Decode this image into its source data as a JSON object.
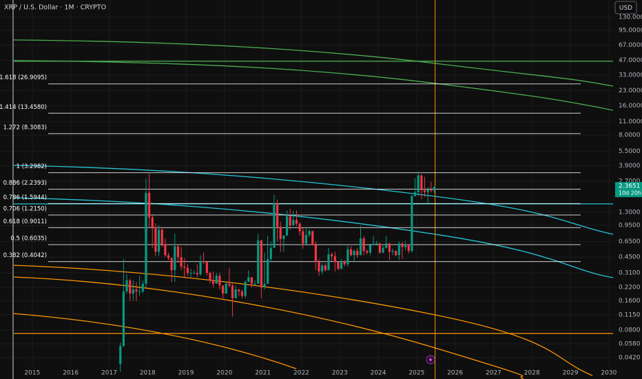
{
  "chart_data": {
    "type": "candlestick",
    "title": "XRP / U.S. Dollar · 1M · CRYPTO",
    "currency": "USD",
    "log_scale": true,
    "grid": true,
    "up_color": "#089981",
    "down_color": "#f23645",
    "xlim": [
      2014.16,
      2030.11
    ],
    "xticks": [
      2015,
      2016,
      2017,
      2018,
      2019,
      2020,
      2021,
      2022,
      2023,
      2024,
      2025,
      2026,
      2027,
      2028,
      2029,
      2030
    ],
    "ylim": [
      0.035,
      195
    ],
    "yticks": [
      {
        "value": 130,
        "label": "130.0000"
      },
      {
        "value": 95,
        "label": "95.0000"
      },
      {
        "value": 67,
        "label": "67.0000"
      },
      {
        "value": 47,
        "label": "47.0000"
      },
      {
        "value": 33,
        "label": "33.0000"
      },
      {
        "value": 23,
        "label": "23.0000"
      },
      {
        "value": 16,
        "label": "16.0000"
      },
      {
        "value": 11,
        "label": "11.0000"
      },
      {
        "value": 8,
        "label": "8.0000"
      },
      {
        "value": 5.5,
        "label": "5.5000"
      },
      {
        "value": 3.9,
        "label": "3.9000"
      },
      {
        "value": 2.7,
        "label": "2.7000"
      },
      {
        "value": 1.3,
        "label": "1.3000"
      },
      {
        "value": 0.95,
        "label": "0.9500"
      },
      {
        "value": 0.65,
        "label": "0.6500"
      },
      {
        "value": 0.45,
        "label": "0.4500"
      },
      {
        "value": 0.31,
        "label": "0.3100"
      },
      {
        "value": 0.22,
        "label": "0.2200"
      },
      {
        "value": 0.16,
        "label": "0.1600"
      },
      {
        "value": 0.115,
        "label": "0.1150"
      },
      {
        "value": 0.08,
        "label": "0.0800"
      },
      {
        "value": 0.058,
        "label": "0.0580"
      },
      {
        "value": 0.042,
        "label": "0.0420"
      }
    ],
    "fib_levels": [
      {
        "value": 26.9095,
        "label": "1.618 (26.9095)"
      },
      {
        "value": 13.458,
        "label": "1.414 (13.4580)"
      },
      {
        "value": 8.3083,
        "label": "1.272 (8.3083)"
      },
      {
        "value": 3.2982,
        "label": "1 (3.2982)"
      },
      {
        "value": 2.2393,
        "label": "0.886 (2.2393)"
      },
      {
        "value": 1.5944,
        "label": "0.786 (1.5944)"
      },
      {
        "value": 1.215,
        "label": "0.706 (1.2150)"
      },
      {
        "value": 0.9011,
        "label": "0.618 (0.9011)"
      },
      {
        "value": 0.6035,
        "label": "0.5 (0.6035)"
      },
      {
        "value": 0.4042,
        "label": "0.382 (0.4042)"
      }
    ],
    "hlines": [
      {
        "value": 45.9,
        "color": "#4caf50"
      },
      {
        "value": 1.58,
        "color": "#26c6da"
      },
      {
        "value": 0.0741,
        "color": "#ff9800"
      }
    ],
    "vlines": [
      {
        "value": 2025.48,
        "color": "#ff9800"
      },
      {
        "value": 2014.5,
        "color": "#d1d4dc"
      }
    ],
    "last_price": 2.3651,
    "countdown": "10d 20h",
    "x": [
      2017.292,
      2017.375,
      2017.458,
      2017.542,
      2017.625,
      2017.708,
      2017.792,
      2017.875,
      2017.958,
      2018.042,
      2018.125,
      2018.208,
      2018.292,
      2018.375,
      2018.458,
      2018.542,
      2018.625,
      2018.708,
      2018.792,
      2018.875,
      2018.958,
      2019.042,
      2019.125,
      2019.208,
      2019.292,
      2019.375,
      2019.458,
      2019.542,
      2019.625,
      2019.708,
      2019.792,
      2019.875,
      2019.958,
      2020.042,
      2020.125,
      2020.208,
      2020.292,
      2020.375,
      2020.458,
      2020.542,
      2020.625,
      2020.708,
      2020.792,
      2020.875,
      2020.958,
      2021.042,
      2021.125,
      2021.208,
      2021.292,
      2021.375,
      2021.458,
      2021.542,
      2021.625,
      2021.708,
      2021.792,
      2021.875,
      2021.958,
      2022.042,
      2022.125,
      2022.208,
      2022.292,
      2022.375,
      2022.458,
      2022.542,
      2022.625,
      2022.708,
      2022.792,
      2022.875,
      2022.958,
      2023.042,
      2023.125,
      2023.208,
      2023.292,
      2023.375,
      2023.458,
      2023.542,
      2023.625,
      2023.708,
      2023.792,
      2023.875,
      2023.958,
      2024.042,
      2024.125,
      2024.208,
      2024.292,
      2024.375,
      2024.458,
      2024.542,
      2024.625,
      2024.708,
      2024.792,
      2024.875,
      2024.958,
      2025.042,
      2025.125,
      2025.208,
      2025.292,
      2025.375,
      2025.458
    ],
    "open": [
      0.036,
      0.055,
      0.2,
      0.26,
      0.19,
      0.21,
      0.2,
      0.2,
      0.24,
      2.05,
      1.15,
      0.91,
      0.51,
      0.86,
      0.61,
      0.47,
      0.44,
      0.33,
      0.58,
      0.45,
      0.36,
      0.35,
      0.31,
      0.31,
      0.31,
      0.3,
      0.41,
      0.4,
      0.31,
      0.26,
      0.24,
      0.29,
      0.23,
      0.19,
      0.24,
      0.23,
      0.17,
      0.21,
      0.2,
      0.18,
      0.25,
      0.28,
      0.24,
      0.24,
      0.67,
      0.22,
      0.24,
      0.43,
      0.56,
      1.6,
      0.92,
      0.69,
      0.75,
      1.18,
      0.95,
      1.08,
      0.99,
      0.83,
      0.62,
      0.76,
      0.83,
      0.6,
      0.4,
      0.32,
      0.37,
      0.33,
      0.48,
      0.46,
      0.4,
      0.34,
      0.41,
      0.38,
      0.54,
      0.47,
      0.52,
      0.47,
      0.7,
      0.52,
      0.5,
      0.6,
      0.62,
      0.62,
      0.5,
      0.56,
      0.62,
      0.51,
      0.52,
      0.47,
      0.62,
      0.57,
      0.61,
      0.52,
      1.9,
      2.08,
      3.1,
      2.18,
      2.09,
      2.22,
      2.17
    ],
    "high": [
      0.06,
      0.43,
      0.3,
      0.27,
      0.26,
      0.25,
      0.29,
      0.26,
      2.86,
      3.3,
      1.21,
      1.0,
      0.96,
      0.92,
      0.7,
      0.5,
      0.45,
      0.78,
      0.59,
      0.57,
      0.44,
      0.38,
      0.34,
      0.33,
      0.38,
      0.47,
      0.5,
      0.41,
      0.32,
      0.32,
      0.31,
      0.31,
      0.23,
      0.25,
      0.35,
      0.24,
      0.23,
      0.21,
      0.21,
      0.26,
      0.33,
      0.28,
      0.26,
      0.78,
      0.67,
      0.5,
      0.74,
      0.65,
      1.96,
      1.75,
      1.04,
      0.75,
      1.35,
      1.41,
      1.34,
      1.35,
      1.03,
      0.89,
      0.91,
      0.87,
      0.84,
      0.65,
      0.43,
      0.39,
      0.39,
      0.56,
      0.5,
      0.51,
      0.41,
      0.43,
      0.42,
      0.59,
      0.58,
      0.54,
      0.56,
      0.94,
      0.74,
      0.54,
      0.59,
      0.74,
      0.66,
      0.63,
      0.59,
      0.74,
      0.63,
      0.55,
      0.53,
      0.65,
      0.64,
      0.66,
      0.62,
      1.95,
      2.91,
      3.4,
      3.2,
      3.0,
      2.36,
      2.65,
      2.34
    ],
    "low": [
      0.03,
      0.054,
      0.19,
      0.16,
      0.16,
      0.16,
      0.18,
      0.19,
      0.22,
      0.92,
      0.56,
      0.46,
      0.46,
      0.57,
      0.45,
      0.42,
      0.25,
      0.25,
      0.39,
      0.33,
      0.28,
      0.29,
      0.28,
      0.3,
      0.28,
      0.29,
      0.38,
      0.29,
      0.24,
      0.22,
      0.24,
      0.21,
      0.17,
      0.19,
      0.22,
      0.11,
      0.17,
      0.18,
      0.17,
      0.17,
      0.25,
      0.22,
      0.23,
      0.24,
      0.17,
      0.21,
      0.24,
      0.4,
      0.56,
      0.65,
      0.51,
      0.51,
      0.74,
      0.86,
      0.95,
      0.94,
      0.75,
      0.55,
      0.59,
      0.72,
      0.59,
      0.33,
      0.29,
      0.3,
      0.32,
      0.33,
      0.41,
      0.32,
      0.33,
      0.34,
      0.36,
      0.36,
      0.46,
      0.41,
      0.44,
      0.47,
      0.47,
      0.48,
      0.47,
      0.59,
      0.59,
      0.49,
      0.49,
      0.55,
      0.42,
      0.47,
      0.46,
      0.42,
      0.43,
      0.53,
      0.49,
      0.5,
      1.88,
      1.9,
      1.77,
      1.86,
      1.61,
      2.07,
      2.05
    ],
    "close": [
      0.055,
      0.2,
      0.26,
      0.19,
      0.21,
      0.2,
      0.2,
      0.24,
      2.05,
      1.15,
      0.91,
      0.51,
      0.86,
      0.61,
      0.47,
      0.44,
      0.33,
      0.58,
      0.45,
      0.36,
      0.35,
      0.31,
      0.31,
      0.31,
      0.3,
      0.41,
      0.4,
      0.31,
      0.26,
      0.24,
      0.29,
      0.23,
      0.19,
      0.24,
      0.23,
      0.17,
      0.21,
      0.2,
      0.18,
      0.25,
      0.28,
      0.24,
      0.24,
      0.67,
      0.22,
      0.24,
      0.43,
      0.56,
      1.6,
      0.92,
      0.69,
      0.75,
      1.18,
      0.95,
      1.08,
      0.99,
      0.83,
      0.62,
      0.76,
      0.83,
      0.6,
      0.4,
      0.32,
      0.37,
      0.33,
      0.48,
      0.46,
      0.4,
      0.34,
      0.41,
      0.38,
      0.54,
      0.47,
      0.52,
      0.47,
      0.7,
      0.52,
      0.5,
      0.6,
      0.62,
      0.62,
      0.5,
      0.56,
      0.62,
      0.51,
      0.52,
      0.47,
      0.62,
      0.57,
      0.61,
      0.52,
      1.9,
      2.08,
      3.1,
      2.18,
      2.09,
      2.22,
      2.17,
      2.3651
    ]
  }
}
